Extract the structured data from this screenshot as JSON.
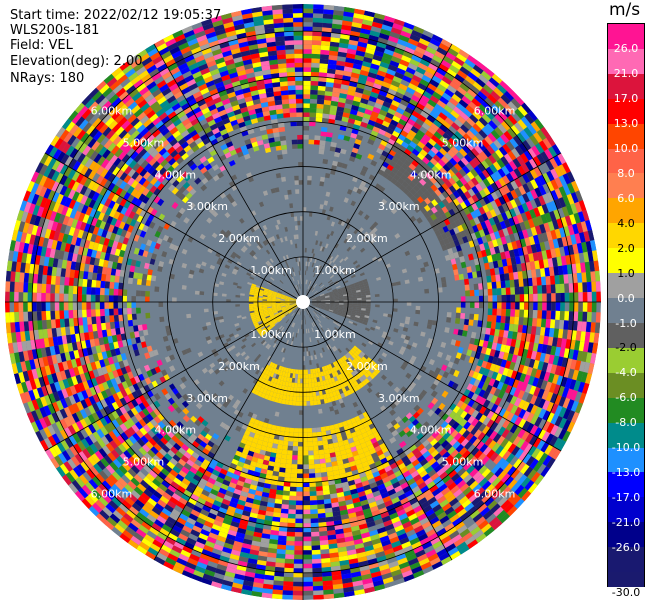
{
  "header": {
    "start_time": "Start time: 2022/02/12 19:05:37",
    "instrument": "WLS200s-181",
    "field": "Field: VEL",
    "elevation": "Elevation(deg): 2.00",
    "nrays": "NRays: 180"
  },
  "chart_data": {
    "type": "heatmap",
    "projection": "polar-ppi",
    "field": "VEL",
    "elevation_deg": 2.0,
    "nrays": 180,
    "range_rings_km": [
      1.0,
      2.0,
      3.0,
      4.0,
      5.0,
      6.0
    ],
    "ring_labels": [
      "1.00km",
      "2.00km",
      "3.00km",
      "4.00km",
      "5.00km",
      "6.00km"
    ],
    "spokes_deg": [
      0,
      30,
      60,
      90,
      120,
      150,
      180,
      210,
      240,
      270,
      300,
      330
    ],
    "max_range_km": 6.6,
    "colorbar": {
      "unit": "m/s",
      "labels": [
        "26.0",
        "21.0",
        "17.0",
        "13.0",
        "10.0",
        "8.0",
        "6.0",
        "4.0",
        "2.0",
        "1.0",
        "0.0",
        "-1.0",
        "-2.0",
        "-4.0",
        "-6.0",
        "-8.0",
        "-10.0",
        "-13.0",
        "-17.0",
        "-21.0",
        "-26.0",
        "-30.0"
      ],
      "colors": [
        "#ff1493",
        "#ff69b4",
        "#dc143c",
        "#ff0000",
        "#ff4500",
        "#ff6347",
        "#ff7f50",
        "#ffa500",
        "#ffd700",
        "#ffff00",
        "#a0a0a0",
        "#708090",
        "#606060",
        "#9acd32",
        "#6b8e23",
        "#228b22",
        "#008b8b",
        "#1e90ff",
        "#0000ff",
        "#0000cd",
        "#00008b",
        "#191970",
        "#1a1a6e"
      ]
    },
    "regions": [
      {
        "az": [
          0,
          360
        ],
        "r": [
          0.0,
          4.1
        ],
        "value": -1.0
      },
      {
        "az": [
          130,
          210
        ],
        "r": [
          1.5,
          2.3
        ],
        "value": 2.0
      },
      {
        "az": [
          150,
          205
        ],
        "r": [
          2.8,
          5.6
        ],
        "value": 3.0
      },
      {
        "az": [
          30,
          70
        ],
        "r": [
          3.3,
          4.8
        ],
        "value": -2.0
      },
      {
        "az": [
          70,
          110
        ],
        "r": [
          0.2,
          1.5
        ],
        "value": -2.0
      },
      {
        "az": [
          230,
          290
        ],
        "r": [
          0.0,
          1.2
        ],
        "value": 2.0
      },
      {
        "az": [
          320,
          350
        ],
        "r": [
          4.3,
          5.6
        ],
        "value": 2.0
      }
    ]
  }
}
